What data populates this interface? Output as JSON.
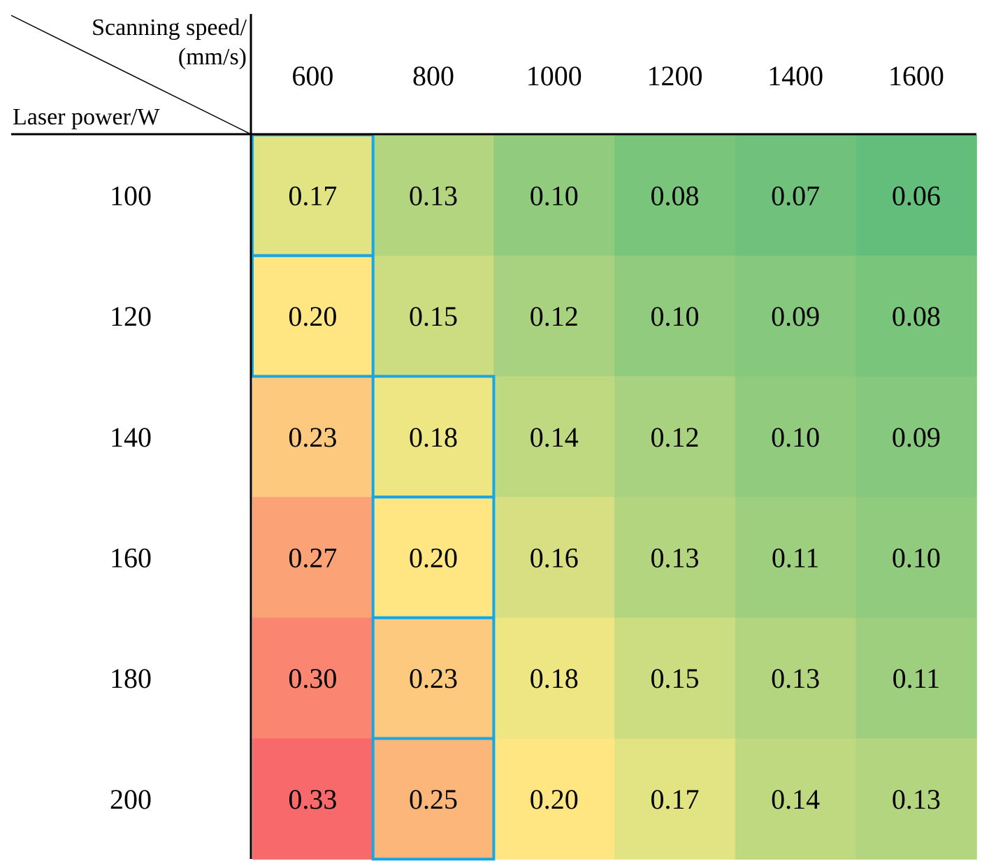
{
  "chart_data": {
    "type": "heatmap",
    "title": "",
    "col_header": "Scanning speed/",
    "col_header_unit": "(mm/s)",
    "row_header": "Laser power/W",
    "columns": [
      "600",
      "800",
      "1000",
      "1200",
      "1400",
      "1600"
    ],
    "rows": [
      "100",
      "120",
      "140",
      "160",
      "180",
      "200"
    ],
    "values": [
      [
        "0.17",
        "0.13",
        "0.10",
        "0.08",
        "0.07",
        "0.06"
      ],
      [
        "0.20",
        "0.15",
        "0.12",
        "0.10",
        "0.09",
        "0.08"
      ],
      [
        "0.23",
        "0.18",
        "0.14",
        "0.12",
        "0.10",
        "0.09"
      ],
      [
        "0.27",
        "0.20",
        "0.16",
        "0.13",
        "0.11",
        "0.10"
      ],
      [
        "0.30",
        "0.23",
        "0.18",
        "0.15",
        "0.13",
        "0.11"
      ],
      [
        "0.33",
        "0.25",
        "0.20",
        "0.17",
        "0.14",
        "0.13"
      ]
    ],
    "color_scale": {
      "min": 0.06,
      "max": 0.33,
      "stops": [
        "#63BE7B",
        "#FFEB84",
        "#F8696B"
      ]
    },
    "highlighted_cells": [
      [
        0,
        0
      ],
      [
        1,
        0
      ],
      [
        2,
        1
      ],
      [
        3,
        1
      ],
      [
        4,
        1
      ],
      [
        5,
        1
      ]
    ],
    "highlight_color": "#1AA7E0",
    "rule_color": "#000000"
  }
}
